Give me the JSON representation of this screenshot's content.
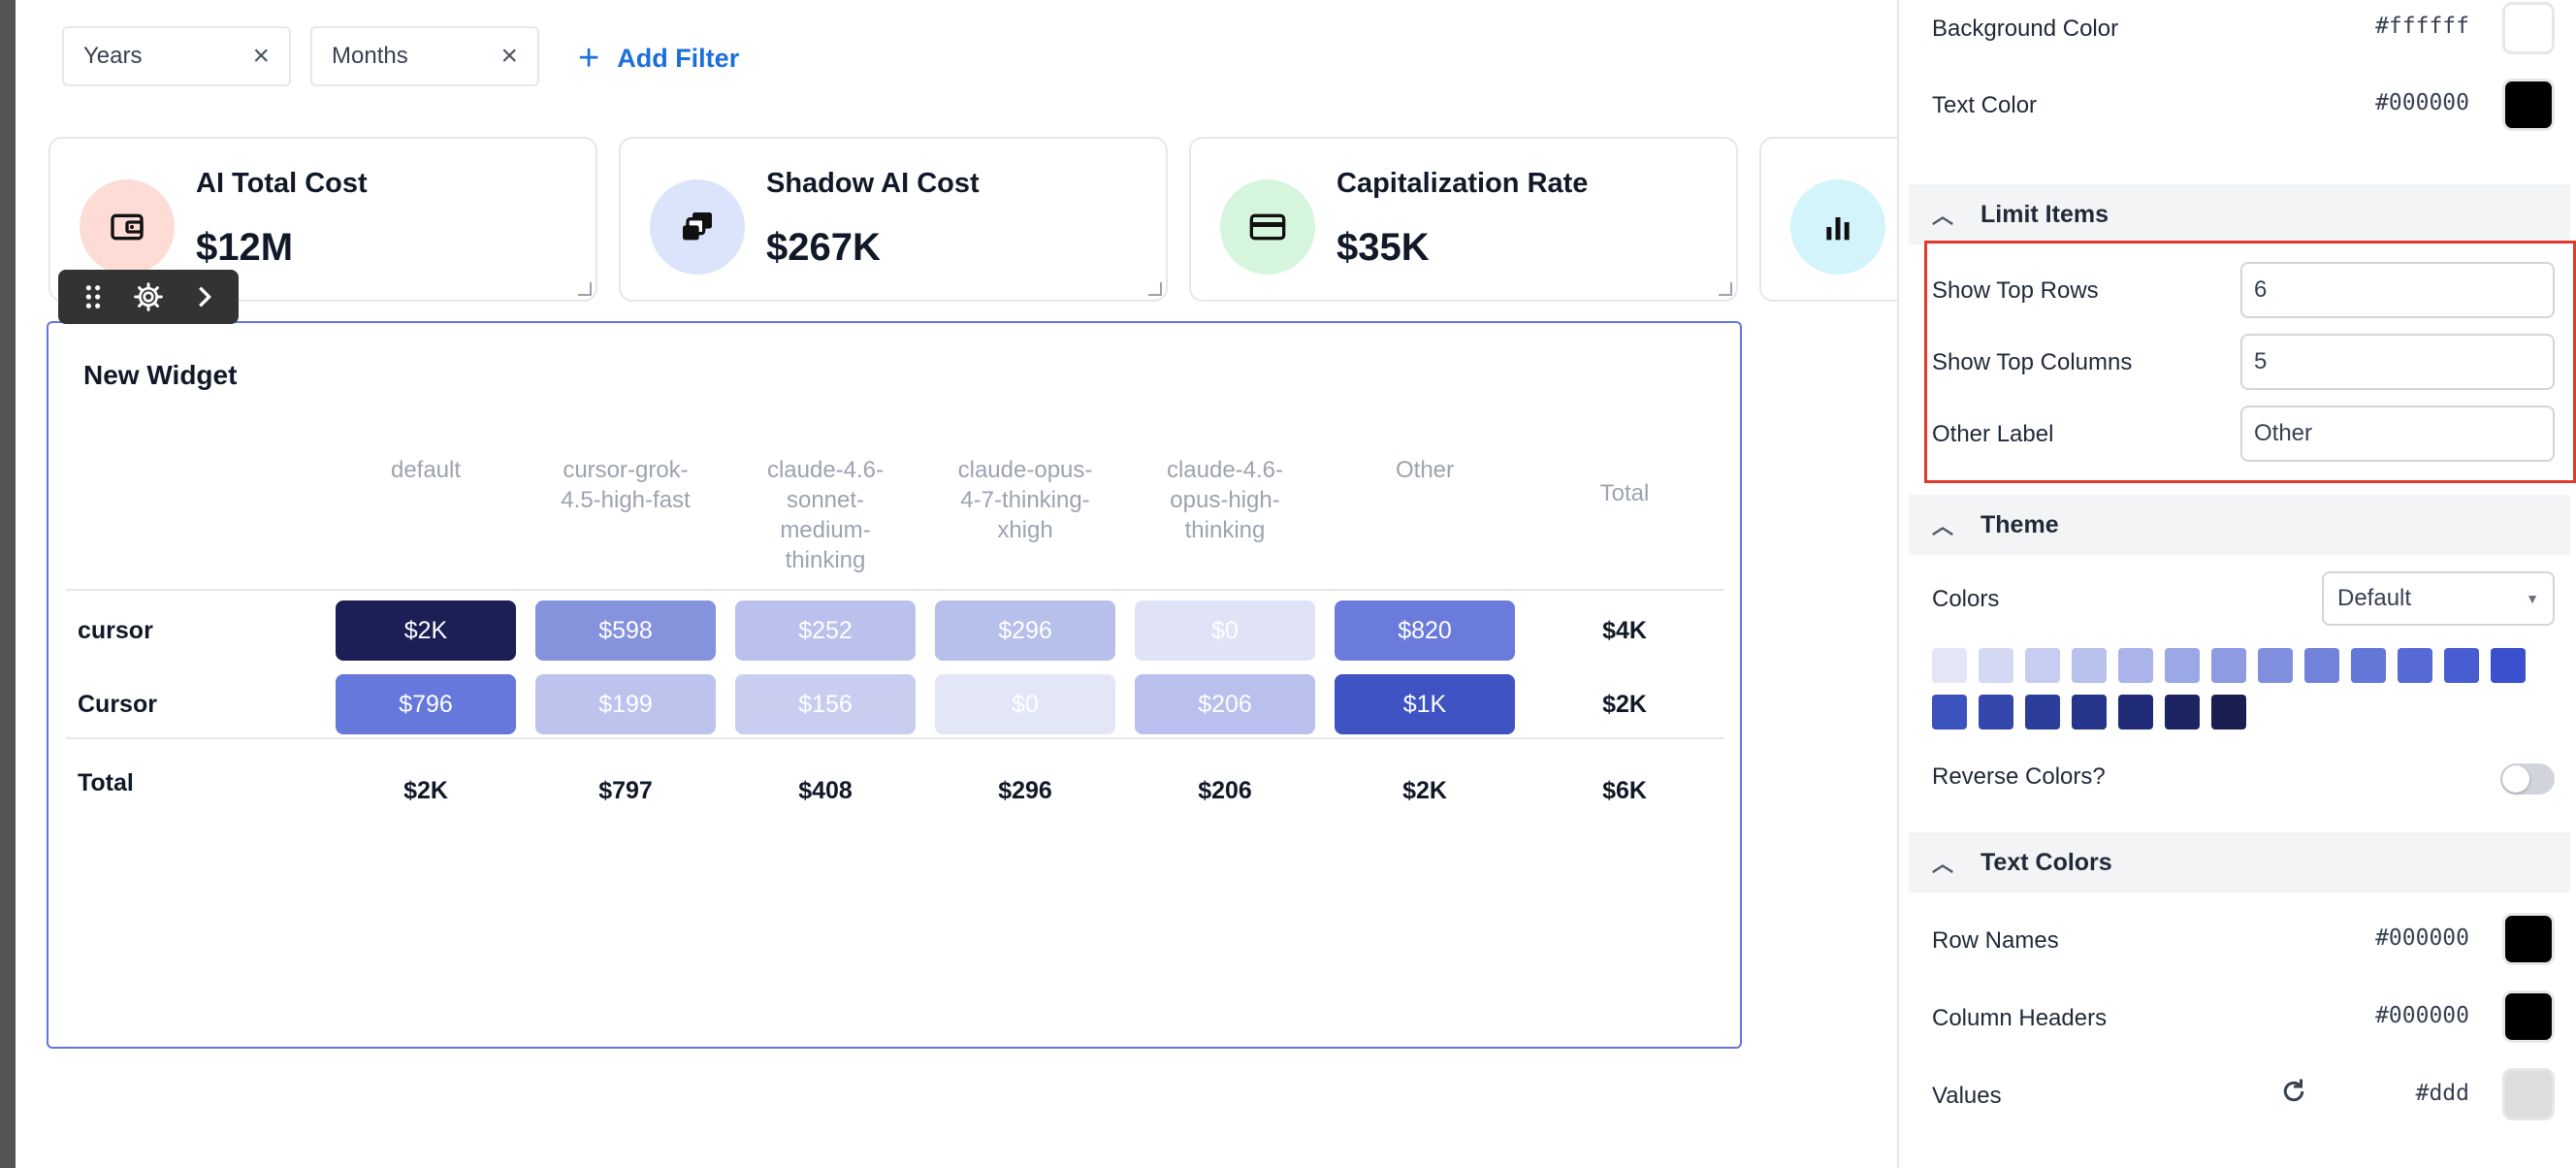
{
  "filters": [
    {
      "label": "Years"
    },
    {
      "label": "Months"
    }
  ],
  "add_filter_label": "Add Filter",
  "kpis": [
    {
      "title": "AI Total Cost",
      "value": "$12M",
      "icon": "wallet-icon",
      "color": "#fcdcd5"
    },
    {
      "title": "Shadow AI Cost",
      "value": "$267K",
      "icon": "stack-icon",
      "color": "#dbe4fb"
    },
    {
      "title": "Capitalization Rate",
      "value": "$35K",
      "icon": "credit-card-icon",
      "color": "#d5f6dc"
    },
    {
      "title": "",
      "value": "",
      "icon": "bar-chart-icon",
      "color": "#d4f4fb"
    }
  ],
  "widget": {
    "title": "New Widget",
    "columns": [
      "default",
      "cursor-grok-4.5-high-fast",
      "claude-4.6-sonnet-medium-thinking",
      "claude-opus-4-7-thinking-xhigh",
      "claude-4.6-opus-high-thinking",
      "Other",
      "Total"
    ],
    "column_lines": [
      [
        "default"
      ],
      [
        "cursor-grok-",
        "4.5-high-fast"
      ],
      [
        "claude-4.6-",
        "sonnet-",
        "medium-",
        "thinking"
      ],
      [
        "claude-opus-",
        "4-7-thinking-",
        "xhigh"
      ],
      [
        "claude-4.6-",
        "opus-high-",
        "thinking"
      ],
      [
        "Other"
      ],
      [
        "Total"
      ]
    ],
    "rows": [
      {
        "name": "cursor",
        "cells": [
          "$2K",
          "$598",
          "$252",
          "$296",
          "$0",
          "$820"
        ],
        "total": "$4K",
        "colors": [
          "#1c1f55",
          "#8592dc",
          "#bac1ec",
          "#b7bfeb",
          "#e0e3f7",
          "#6a7bdc"
        ]
      },
      {
        "name": "Cursor",
        "cells": [
          "$796",
          "$199",
          "$156",
          "$0",
          "$206",
          "$1K"
        ],
        "total": "$2K",
        "colors": [
          "#6678dc",
          "#bcc4ee",
          "#c9cef1",
          "#e3e6f7",
          "#b9c0ed",
          "#3f53c2"
        ]
      }
    ],
    "total_row": {
      "name": "Total",
      "cells": [
        "$2K",
        "$797",
        "$408",
        "$296",
        "$206",
        "$2K"
      ],
      "total": "$6K"
    }
  },
  "panel": {
    "background_color": {
      "label": "Background Color",
      "hex": "#ffffff"
    },
    "text_color": {
      "label": "Text Color",
      "hex": "#000000"
    },
    "limit_items": {
      "section": "Limit Items",
      "show_top_rows": {
        "label": "Show Top Rows",
        "value": "6"
      },
      "show_top_columns": {
        "label": "Show Top Columns",
        "value": "5"
      },
      "other_label": {
        "label": "Other Label",
        "value": "Other"
      }
    },
    "theme": {
      "section": "Theme",
      "colors_label": "Colors",
      "colors_value": "Default",
      "palette": [
        "#e3e6f7",
        "#d4d9f3",
        "#c6cdf0",
        "#b8c0ec",
        "#aab4e9",
        "#9ca8e5",
        "#8e9be2",
        "#808fde",
        "#7282db",
        "#6476d7",
        "#5669d4",
        "#485dd0",
        "#3a50cd",
        "#3c52bd",
        "#3447ac",
        "#2d3e9a",
        "#263589",
        "#202c78",
        "#1c2462",
        "#1a1f4f"
      ],
      "reverse_label": "Reverse Colors?"
    },
    "text_colors": {
      "section": "Text Colors",
      "row_names": {
        "label": "Row Names",
        "hex": "#000000"
      },
      "column_headers": {
        "label": "Column Headers",
        "hex": "#000000"
      },
      "values": {
        "label": "Values",
        "hex": "#ddd"
      }
    }
  }
}
